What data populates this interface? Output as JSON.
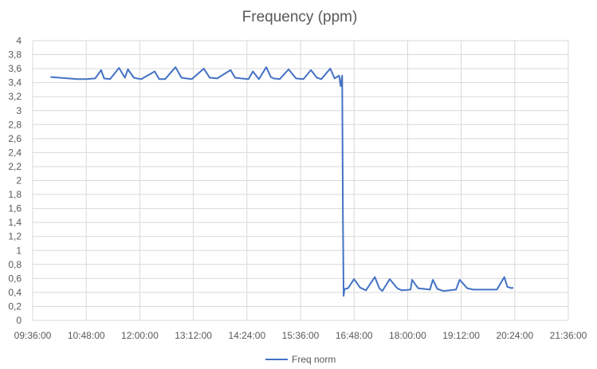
{
  "chart_data": {
    "type": "line",
    "title": "Frequency (ppm)",
    "xlabel": "",
    "ylabel": "",
    "xlim": [
      "09:36:00",
      "21:36:00"
    ],
    "ylim": [
      0,
      4
    ],
    "grid": true,
    "legend_position": "bottom",
    "x_ticks": [
      "09:36:00",
      "10:48:00",
      "12:00:00",
      "13:12:00",
      "14:24:00",
      "15:36:00",
      "16:48:00",
      "18:00:00",
      "19:12:00",
      "20:24:00",
      "21:36:00"
    ],
    "y_ticks": [
      "0",
      "0,2",
      "0,4",
      "0,6",
      "0,8",
      "1",
      "1,2",
      "1,4",
      "1,6",
      "1,8",
      "2",
      "2,2",
      "2,4",
      "2,6",
      "2,8",
      "3",
      "3,2",
      "3,4",
      "3,6",
      "3,8",
      "4"
    ],
    "series": [
      {
        "name": "Freq norm",
        "color": "#4472c4",
        "x": [
          "10:00:00",
          "10:12:00",
          "10:24:00",
          "10:36:00",
          "10:48:00",
          "11:00:00",
          "11:08:00",
          "11:12:00",
          "11:20:00",
          "11:32:00",
          "11:40:00",
          "11:44:00",
          "11:52:00",
          "11:56:00",
          "12:02:00",
          "12:20:00",
          "12:26:00",
          "12:34:00",
          "12:48:00",
          "12:56:00",
          "13:02:00",
          "13:10:00",
          "13:26:00",
          "13:34:00",
          "13:44:00",
          "14:02:00",
          "14:08:00",
          "14:16:00",
          "14:26:00",
          "14:32:00",
          "14:40:00",
          "14:50:00",
          "14:56:00",
          "15:00:00",
          "15:08:00",
          "15:20:00",
          "15:30:00",
          "15:40:00",
          "15:50:00",
          "15:58:00",
          "16:04:00",
          "16:16:00",
          "16:22:00",
          "16:28:00",
          "16:30:00",
          "16:32:00",
          "16:33:00",
          "16:34:00",
          "16:35:00",
          "16:36:00",
          "16:40:00",
          "16:48:00",
          "16:56:00",
          "17:04:00",
          "17:16:00",
          "17:22:00",
          "17:26:00",
          "17:36:00",
          "17:46:00",
          "17:52:00",
          "18:04:00",
          "18:06:00",
          "18:14:00",
          "18:30:00",
          "18:34:00",
          "18:40:00",
          "18:48:00",
          "19:05:00",
          "19:10:00",
          "19:20:00",
          "19:28:00",
          "19:32:00",
          "19:42:00",
          "20:00:00",
          "20:10:00",
          "20:14:00",
          "20:20:00",
          "20:22:00"
        ],
        "values": [
          3.48,
          3.47,
          3.46,
          3.45,
          3.45,
          3.46,
          3.58,
          3.46,
          3.45,
          3.61,
          3.47,
          3.59,
          3.47,
          3.46,
          3.45,
          3.56,
          3.45,
          3.45,
          3.62,
          3.47,
          3.46,
          3.45,
          3.6,
          3.47,
          3.46,
          3.58,
          3.47,
          3.46,
          3.45,
          3.56,
          3.45,
          3.62,
          3.48,
          3.46,
          3.45,
          3.59,
          3.46,
          3.45,
          3.58,
          3.47,
          3.45,
          3.6,
          3.46,
          3.5,
          3.35,
          3.5,
          1.5,
          0.35,
          0.44,
          0.45,
          0.46,
          0.59,
          0.47,
          0.43,
          0.62,
          0.46,
          0.42,
          0.59,
          0.46,
          0.43,
          0.44,
          0.58,
          0.46,
          0.44,
          0.58,
          0.45,
          0.42,
          0.44,
          0.58,
          0.46,
          0.44,
          0.44,
          0.44,
          0.44,
          0.62,
          0.48,
          0.46,
          0.47
        ]
      }
    ]
  }
}
